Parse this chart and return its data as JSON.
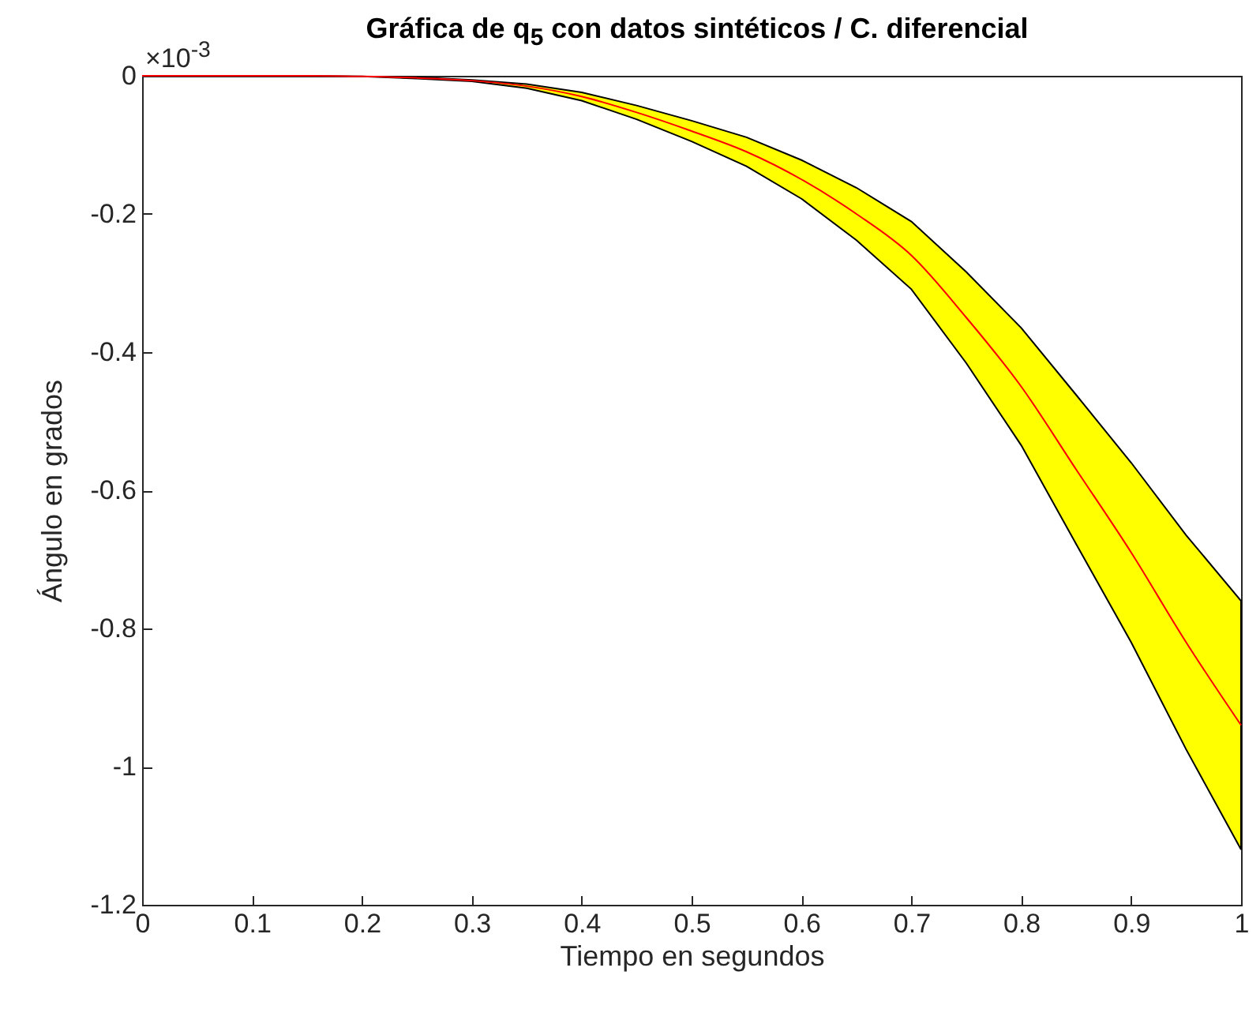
{
  "chart_data": {
    "type": "line",
    "title": "Gráfica de q$_{5}$ con datos sintéticos / C. diferencial",
    "xlabel": "Tiempo en segundos",
    "ylabel": "Ángulo en grados",
    "annotations": [
      "×10$^{-3}$"
    ],
    "x": [
      0,
      0.05,
      0.1,
      0.15,
      0.2,
      0.25,
      0.3,
      0.35,
      0.4,
      0.45,
      0.5,
      0.55,
      0.6,
      0.65,
      0.7,
      0.75,
      0.8,
      0.85,
      0.9,
      0.95,
      1
    ],
    "series": [
      {
        "color": "#ff0000",
        "values": [
          0,
          0,
          0,
          0,
          -0.001,
          -0.003,
          -0.007,
          -0.015,
          -0.03,
          -0.053,
          -0.08,
          -0.11,
          -0.15,
          -0.2,
          -0.26,
          -0.35,
          -0.45,
          -0.57,
          -0.69,
          -0.82,
          -0.94
        ],
        "upper": [
          0,
          0,
          0,
          0,
          -0.001,
          -0.002,
          -0.006,
          -0.012,
          -0.024,
          -0.043,
          -0.065,
          -0.089,
          -0.122,
          -0.162,
          -0.211,
          -0.284,
          -0.365,
          -0.462,
          -0.56,
          -0.665,
          -0.76
        ],
        "lower": [
          0,
          0,
          0,
          0,
          -0.001,
          -0.004,
          -0.008,
          -0.018,
          -0.036,
          -0.063,
          -0.095,
          -0.131,
          -0.178,
          -0.238,
          -0.309,
          -0.416,
          -0.535,
          -0.678,
          -0.82,
          -0.975,
          -1.12
        ]
      }
    ],
    "xlim": [
      0,
      1
    ],
    "ylim": [
      -1.2,
      0
    ],
    "xticks": [
      0,
      0.1,
      0.2,
      0.3,
      0.4,
      0.5,
      0.6,
      0.7,
      0.8,
      0.9,
      1
    ],
    "yticks": [
      0,
      -0.2,
      -0.4,
      -0.6,
      -0.8,
      -1,
      -1.2
    ]
  }
}
